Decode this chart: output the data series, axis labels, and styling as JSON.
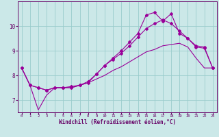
{
  "xlabel": "Windchill (Refroidissement éolien,°C)",
  "background_color": "#cbe8e8",
  "grid_color": "#99cccc",
  "line_color": "#990099",
  "xlim": [
    -0.5,
    23.5
  ],
  "ylim": [
    6.5,
    11.0
  ],
  "yticks": [
    7,
    8,
    9,
    10
  ],
  "xticks": [
    0,
    1,
    2,
    3,
    4,
    5,
    6,
    7,
    8,
    9,
    10,
    11,
    12,
    13,
    14,
    15,
    16,
    17,
    18,
    19,
    20,
    21,
    22,
    23
  ],
  "line1_x": [
    0,
    1,
    2,
    3,
    4,
    5,
    6,
    7,
    8,
    9,
    10,
    11,
    12,
    13,
    14,
    15,
    16,
    17,
    18,
    19,
    20,
    21,
    22,
    23
  ],
  "line1_y": [
    8.3,
    7.6,
    7.5,
    7.4,
    7.5,
    7.5,
    7.5,
    7.6,
    7.7,
    8.05,
    8.4,
    8.7,
    9.0,
    9.35,
    9.7,
    10.45,
    10.55,
    10.2,
    10.5,
    9.7,
    9.5,
    9.2,
    9.15,
    8.3
  ],
  "line2_x": [
    0,
    1,
    2,
    3,
    4,
    5,
    6,
    7,
    8,
    9,
    10,
    11,
    12,
    13,
    14,
    15,
    16,
    17,
    18,
    19,
    20,
    21,
    22,
    23
  ],
  "line2_y": [
    8.3,
    7.6,
    7.5,
    7.4,
    7.5,
    7.5,
    7.55,
    7.6,
    7.75,
    8.05,
    8.4,
    8.65,
    8.9,
    9.2,
    9.55,
    9.9,
    10.1,
    10.25,
    10.1,
    9.8,
    9.5,
    9.15,
    9.1,
    8.3
  ],
  "line3_x": [
    0,
    1,
    2,
    3,
    4,
    5,
    6,
    7,
    8,
    9,
    10,
    11,
    12,
    13,
    14,
    15,
    16,
    17,
    18,
    19,
    20,
    21,
    22,
    23
  ],
  "line3_y": [
    8.3,
    7.6,
    6.6,
    7.2,
    7.5,
    7.5,
    7.5,
    7.6,
    7.7,
    7.85,
    8.0,
    8.2,
    8.35,
    8.55,
    8.75,
    8.95,
    9.05,
    9.2,
    9.25,
    9.3,
    9.15,
    8.7,
    8.3,
    8.3
  ]
}
